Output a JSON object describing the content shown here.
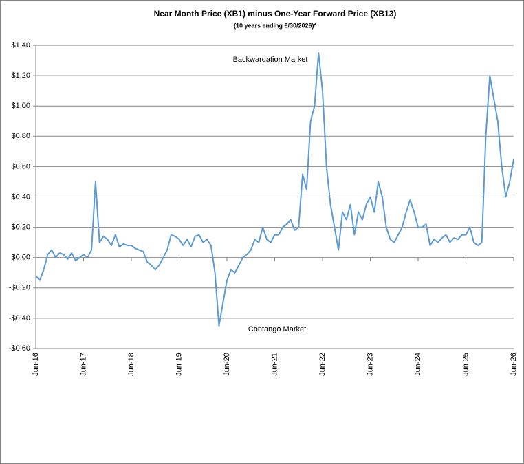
{
  "chart_data": {
    "type": "line",
    "title": "Near Month Price (XB1) minus One-Year Forward Price (XB13)",
    "subtitle": "(10 years ending  6/30/2026)*",
    "annotations": [
      "Backwardation Market",
      "Contango Market"
    ],
    "categories": [
      "Jun-16",
      null,
      null,
      null,
      null,
      null,
      null,
      null,
      null,
      null,
      null,
      null,
      "Jun-17",
      null,
      null,
      null,
      null,
      null,
      null,
      null,
      null,
      null,
      null,
      null,
      "Jun-18",
      null,
      null,
      null,
      null,
      null,
      null,
      null,
      null,
      null,
      null,
      null,
      "Jun-19",
      null,
      null,
      null,
      null,
      null,
      null,
      null,
      null,
      null,
      null,
      null,
      "Jun-20",
      null,
      null,
      null,
      null,
      null,
      null,
      null,
      null,
      null,
      null,
      null,
      "Jun-21",
      null,
      null,
      null,
      null,
      null,
      null,
      null,
      null,
      null,
      null,
      null,
      "Jun-22",
      null,
      null,
      null,
      null,
      null,
      null,
      null,
      null,
      null,
      null,
      null,
      "Jun-23",
      null,
      null,
      null,
      null,
      null,
      null,
      null,
      null,
      null,
      null,
      null,
      "Jun-24",
      null,
      null,
      null,
      null,
      null,
      null,
      null,
      null,
      null,
      null,
      null,
      "Jun-25",
      null,
      null,
      null,
      null,
      null,
      null,
      null,
      null,
      null,
      null,
      null,
      "Jun-26"
    ],
    "series": [
      {
        "name": "XB1 minus XB13",
        "color": "#5b9bd5",
        "values": [
          -0.12,
          -0.15,
          -0.08,
          0.02,
          0.05,
          0.0,
          0.03,
          0.02,
          -0.01,
          0.03,
          -0.02,
          0.0,
          0.02,
          0.0,
          0.05,
          0.5,
          0.1,
          0.14,
          0.12,
          0.08,
          0.15,
          0.07,
          0.09,
          0.08,
          0.08,
          0.06,
          0.05,
          0.04,
          -0.03,
          -0.05,
          -0.08,
          -0.05,
          0.0,
          0.05,
          0.15,
          0.14,
          0.12,
          0.08,
          0.12,
          0.07,
          0.14,
          0.15,
          0.1,
          0.12,
          0.08,
          -0.1,
          -0.45,
          -0.3,
          -0.15,
          -0.08,
          -0.1,
          -0.05,
          0.0,
          0.02,
          0.05,
          0.12,
          0.1,
          0.2,
          0.12,
          0.1,
          0.15,
          0.15,
          0.2,
          0.22,
          0.25,
          0.18,
          0.2,
          0.55,
          0.45,
          0.9,
          1.0,
          1.35,
          1.1,
          0.6,
          0.35,
          0.2,
          0.05,
          0.3,
          0.25,
          0.35,
          0.15,
          0.3,
          0.25,
          0.35,
          0.4,
          0.3,
          0.5,
          0.4,
          0.2,
          0.12,
          0.1,
          0.15,
          0.2,
          0.3,
          0.38,
          0.3,
          0.2,
          0.2,
          0.22,
          0.08,
          0.12,
          0.1,
          0.13,
          0.15,
          0.1,
          0.13,
          0.12,
          0.15,
          0.15,
          0.2,
          0.1,
          0.08,
          0.1,
          0.8,
          1.2,
          1.05,
          0.9,
          0.6,
          0.4,
          0.5,
          0.65
        ]
      }
    ],
    "ylim": [
      -0.6,
      1.4
    ],
    "yticks": [
      {
        "value": -0.6,
        "label": "-$0.60"
      },
      {
        "value": -0.4,
        "label": "-$0.40"
      },
      {
        "value": -0.2,
        "label": "-$0.20"
      },
      {
        "value": 0,
        "label": "$0.00"
      },
      {
        "value": 0.2,
        "label": "$0.20"
      },
      {
        "value": 0.4,
        "label": "$0.40"
      },
      {
        "value": 0.6,
        "label": "$0.60"
      },
      {
        "value": 0.8,
        "label": "$0.80"
      },
      {
        "value": 1.0,
        "label": "$1.00"
      },
      {
        "value": 1.2,
        "label": "$1.20"
      },
      {
        "value": 1.4,
        "label": "$1.40"
      }
    ],
    "grid": true
  }
}
